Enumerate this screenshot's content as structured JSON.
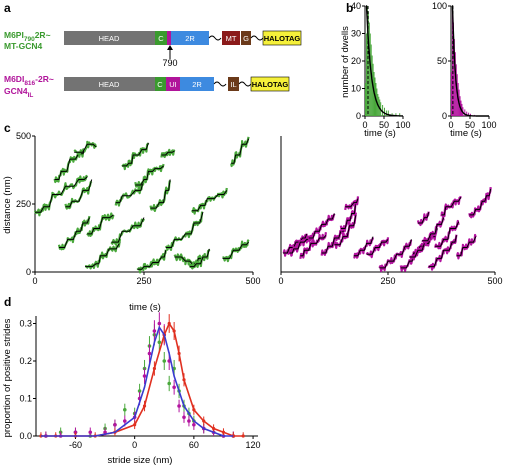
{
  "panels": {
    "a": "a",
    "b": "b",
    "c": "c",
    "d": "d"
  },
  "constructs": [
    {
      "name_line1": "M6PI",
      "name_sub": "790",
      "name_line1b": "2R~",
      "name_line2": "MT-GCN4",
      "color": "#3a9a2e",
      "domains": [
        "HEAD",
        "C",
        "2R",
        "MT",
        "G",
        "HALOTAG"
      ],
      "arrow_label": "790"
    },
    {
      "name_line1": "M6DI",
      "name_sub": "816",
      "name_line1b": "-2R~",
      "name_line2": "GCN4",
      "name_line2_sub": "IL",
      "color": "#b0149a",
      "domains": [
        "HEAD",
        "C",
        "UI",
        "2R",
        "IL",
        "HALOTAG"
      ]
    }
  ],
  "colors": {
    "green": "#4aa83c",
    "magenta": "#b3139f",
    "red": "#e03020",
    "blue": "#3a3ad0",
    "head": "#737373",
    "c_domain": "#3a9a2e",
    "ui_domain": "#b0149a",
    "two_r": "#3d8ae0",
    "mt": "#8b1a1a",
    "il": "#6b3a1a",
    "halotag": "#f5f03a"
  },
  "chart_data": [
    {
      "panel": "b",
      "type": "bar",
      "subplots": [
        {
          "x": [
            0,
            2.5,
            5,
            7.5,
            10,
            12.5,
            15,
            17.5,
            20,
            22.5,
            25,
            27.5,
            30,
            32.5,
            35,
            37.5,
            40,
            45,
            50,
            55,
            60,
            70,
            80,
            90
          ],
          "values": [
            12,
            30,
            40,
            38,
            34,
            30,
            26,
            22,
            19,
            16,
            14,
            12,
            10,
            8,
            7,
            6,
            5,
            4,
            3,
            2,
            2,
            1,
            1,
            1
          ],
          "ylim": [
            0,
            40
          ],
          "xlim": [
            0,
            100
          ],
          "yticks": [
            "0",
            "10",
            "20",
            "30",
            "40"
          ],
          "xticks": [
            "0",
            "50",
            "100"
          ],
          "color": "green"
        },
        {
          "x": [
            0,
            2.5,
            5,
            7.5,
            10,
            12.5,
            15,
            17.5,
            20,
            22.5,
            25,
            27.5,
            30,
            35,
            40,
            45,
            50,
            60
          ],
          "values": [
            40,
            97,
            85,
            70,
            58,
            47,
            38,
            30,
            24,
            18,
            14,
            11,
            8,
            6,
            4,
            3,
            2,
            1
          ],
          "ylim": [
            0,
            100
          ],
          "xlim": [
            0,
            100
          ],
          "yticks": [
            "0",
            "50",
            "100"
          ],
          "xticks": [
            "0",
            "50",
            "100"
          ],
          "color": "magenta"
        }
      ],
      "ylabel": "number of dwells",
      "xlabel": "time (s)"
    },
    {
      "panel": "c",
      "type": "line",
      "ylabel": "distance (nm)",
      "xlabel": "time (s)",
      "left_xlim": [
        0,
        500
      ],
      "right_xlim": [
        0,
        500
      ],
      "ylim": [
        0,
        500
      ],
      "yticks": [
        "0",
        "250",
        "500"
      ],
      "xticks": [
        "0",
        "250",
        "500"
      ],
      "left_traces": [
        [
          [
            0,
            220
          ],
          [
            20,
            240
          ],
          [
            40,
            285
          ],
          [
            70,
            315
          ],
          [
            100,
            340
          ],
          [
            120,
            350
          ]
        ],
        [
          [
            45,
            340
          ],
          [
            60,
            370
          ],
          [
            80,
            415
          ],
          [
            100,
            435
          ],
          [
            115,
            450
          ]
        ],
        [
          [
            55,
            90
          ],
          [
            75,
            120
          ],
          [
            95,
            150
          ],
          [
            110,
            180
          ],
          [
            125,
            200
          ]
        ],
        [
          [
            70,
            240
          ],
          [
            85,
            260
          ],
          [
            110,
            300
          ],
          [
            130,
            340
          ]
        ],
        [
          [
            90,
            440
          ],
          [
            120,
            470
          ],
          [
            140,
            460
          ]
        ],
        [
          [
            115,
            20
          ],
          [
            140,
            30
          ],
          [
            150,
            60
          ],
          [
            170,
            85
          ],
          [
            195,
            110
          ]
        ],
        [
          [
            120,
            140
          ],
          [
            135,
            160
          ],
          [
            155,
            200
          ],
          [
            180,
            210
          ]
        ],
        [
          [
            175,
            110
          ],
          [
            200,
            150
          ],
          [
            225,
            170
          ],
          [
            250,
            200
          ]
        ],
        [
          [
            185,
            255
          ],
          [
            200,
            280
          ],
          [
            230,
            300
          ],
          [
            250,
            345
          ]
        ],
        [
          [
            200,
            390
          ],
          [
            215,
            400
          ],
          [
            225,
            430
          ],
          [
            245,
            450
          ],
          [
            260,
            475
          ]
        ],
        [
          [
            230,
            320
          ],
          [
            250,
            340
          ],
          [
            260,
            370
          ],
          [
            275,
            380
          ],
          [
            295,
            390
          ]
        ],
        [
          [
            235,
            10
          ],
          [
            250,
            20
          ],
          [
            270,
            35
          ],
          [
            290,
            55
          ],
          [
            300,
            80
          ]
        ],
        [
          [
            265,
            235
          ],
          [
            285,
            255
          ],
          [
            300,
            300
          ],
          [
            310,
            340
          ]
        ],
        [
          [
            290,
            430
          ],
          [
            305,
            440
          ],
          [
            320,
            445
          ]
        ],
        [
          [
            300,
            90
          ],
          [
            320,
            120
          ],
          [
            345,
            140
          ],
          [
            365,
            180
          ],
          [
            385,
            220
          ]
        ],
        [
          [
            320,
            55
          ],
          [
            345,
            40
          ],
          [
            360,
            30
          ],
          [
            375,
            50
          ],
          [
            390,
            65
          ]
        ],
        [
          [
            355,
            20
          ],
          [
            370,
            30
          ],
          [
            385,
            55
          ],
          [
            400,
            85
          ]
        ],
        [
          [
            360,
            225
          ],
          [
            380,
            245
          ],
          [
            395,
            270
          ],
          [
            420,
            285
          ],
          [
            440,
            300
          ]
        ],
        [
          [
            430,
            50
          ],
          [
            455,
            80
          ],
          [
            475,
            100
          ],
          [
            490,
            110
          ]
        ],
        [
          [
            450,
            400
          ],
          [
            460,
            430
          ],
          [
            475,
            470
          ],
          [
            490,
            490
          ]
        ]
      ],
      "right_traces": [
        [
          [
            5,
            70
          ],
          [
            20,
            90
          ],
          [
            35,
            110
          ],
          [
            50,
            125
          ],
          [
            60,
            140
          ]
        ],
        [
          [
            20,
            70
          ],
          [
            30,
            85
          ],
          [
            45,
            110
          ],
          [
            60,
            120
          ],
          [
            75,
            140
          ]
        ],
        [
          [
            45,
            60
          ],
          [
            55,
            80
          ],
          [
            70,
            105
          ],
          [
            90,
            125
          ],
          [
            105,
            135
          ]
        ],
        [
          [
            65,
            125
          ],
          [
            80,
            150
          ],
          [
            95,
            175
          ],
          [
            110,
            195
          ],
          [
            125,
            215
          ]
        ],
        [
          [
            95,
            70
          ],
          [
            110,
            95
          ],
          [
            125,
            125
          ],
          [
            140,
            150
          ],
          [
            150,
            165
          ]
        ],
        [
          [
            125,
            100
          ],
          [
            145,
            130
          ],
          [
            160,
            170
          ],
          [
            175,
            210
          ]
        ],
        [
          [
            140,
            160
          ],
          [
            155,
            190
          ],
          [
            165,
            215
          ],
          [
            175,
            255
          ]
        ],
        [
          [
            150,
            240
          ],
          [
            170,
            255
          ],
          [
            180,
            270
          ]
        ],
        [
          [
            170,
            60
          ],
          [
            185,
            80
          ],
          [
            200,
            105
          ],
          [
            215,
            130
          ]
        ],
        [
          [
            200,
            65
          ],
          [
            220,
            90
          ],
          [
            235,
            110
          ],
          [
            250,
            120
          ]
        ],
        [
          [
            230,
            15
          ],
          [
            250,
            40
          ],
          [
            270,
            65
          ],
          [
            290,
            95
          ],
          [
            305,
            120
          ]
        ],
        [
          [
            280,
            15
          ],
          [
            300,
            40
          ],
          [
            310,
            70
          ],
          [
            325,
            95
          ],
          [
            340,
            120
          ]
        ],
        [
          [
            300,
            55
          ],
          [
            320,
            80
          ],
          [
            335,
            105
          ],
          [
            350,
            130
          ],
          [
            365,
            160
          ]
        ],
        [
          [
            320,
            180
          ],
          [
            335,
            200
          ],
          [
            345,
            220
          ]
        ],
        [
          [
            330,
            115
          ],
          [
            350,
            140
          ],
          [
            365,
            175
          ],
          [
            380,
            200
          ]
        ],
        [
          [
            345,
            20
          ],
          [
            365,
            50
          ],
          [
            380,
            80
          ],
          [
            400,
            110
          ],
          [
            410,
            135
          ]
        ],
        [
          [
            360,
            95
          ],
          [
            380,
            120
          ],
          [
            395,
            160
          ],
          [
            415,
            185
          ]
        ],
        [
          [
            375,
            210
          ],
          [
            385,
            240
          ],
          [
            405,
            260
          ],
          [
            420,
            275
          ]
        ],
        [
          [
            410,
            60
          ],
          [
            425,
            90
          ],
          [
            440,
            110
          ],
          [
            455,
            130
          ]
        ],
        [
          [
            440,
            210
          ],
          [
            455,
            230
          ],
          [
            470,
            260
          ],
          [
            480,
            280
          ],
          [
            490,
            305
          ]
        ]
      ]
    },
    {
      "panel": "d",
      "type": "line",
      "ylabel": "proportion of positive strides",
      "xlabel": "stride size (nm)",
      "xlim": [
        -100,
        125
      ],
      "ylim": [
        0,
        0.32
      ],
      "xticks": [
        "-60",
        "0",
        "60",
        "120"
      ],
      "yticks": [
        "0.0",
        "0.1",
        "0.2",
        "0.3"
      ],
      "series": [
        {
          "color": "green",
          "x": [
            -90,
            -75,
            -60,
            -45,
            -30,
            -20,
            -10,
            0,
            5,
            10,
            15,
            20,
            25,
            30,
            35,
            40,
            45,
            50,
            55,
            60,
            70,
            80,
            90,
            100
          ],
          "y": [
            0.0,
            0.01,
            0.01,
            0.0,
            0.02,
            0.03,
            0.07,
            0.06,
            0.12,
            0.18,
            0.24,
            0.27,
            0.25,
            0.2,
            0.14,
            0.18,
            0.12,
            0.08,
            0.06,
            0.04,
            0.02,
            0.01,
            0.0,
            0.0
          ]
        },
        {
          "color": "magenta",
          "x": [
            -90,
            -75,
            -60,
            -45,
            -30,
            -20,
            -10,
            0,
            5,
            10,
            15,
            20,
            25,
            30,
            35,
            40,
            45,
            50,
            55,
            60,
            70,
            80,
            90,
            100
          ],
          "y": [
            0.0,
            0.0,
            0.01,
            0.01,
            0.01,
            0.03,
            0.04,
            0.05,
            0.1,
            0.16,
            0.22,
            0.28,
            0.3,
            0.27,
            0.2,
            0.13,
            0.08,
            0.05,
            0.04,
            0.03,
            0.02,
            0.01,
            0.0,
            0.0
          ]
        },
        {
          "color": "red",
          "x": [
            -95,
            -80,
            -60,
            -40,
            -20,
            0,
            10,
            20,
            30,
            35,
            40,
            45,
            50,
            60,
            70,
            80,
            90,
            100,
            110
          ],
          "y": [
            0.0,
            0.0,
            0.0,
            0.0,
            0.01,
            0.03,
            0.08,
            0.18,
            0.27,
            0.3,
            0.28,
            0.22,
            0.15,
            0.07,
            0.04,
            0.02,
            0.01,
            0.0,
            0.0
          ]
        },
        {
          "color": "blue",
          "x": [
            -95,
            -80,
            -60,
            -40,
            -20,
            0,
            10,
            20,
            25,
            30,
            35,
            40,
            50,
            60,
            70,
            80,
            90,
            100
          ],
          "y": [
            0.0,
            0.0,
            0.0,
            0.0,
            0.01,
            0.05,
            0.13,
            0.25,
            0.29,
            0.27,
            0.22,
            0.16,
            0.08,
            0.04,
            0.02,
            0.01,
            0.0,
            0.0
          ]
        }
      ]
    }
  ]
}
